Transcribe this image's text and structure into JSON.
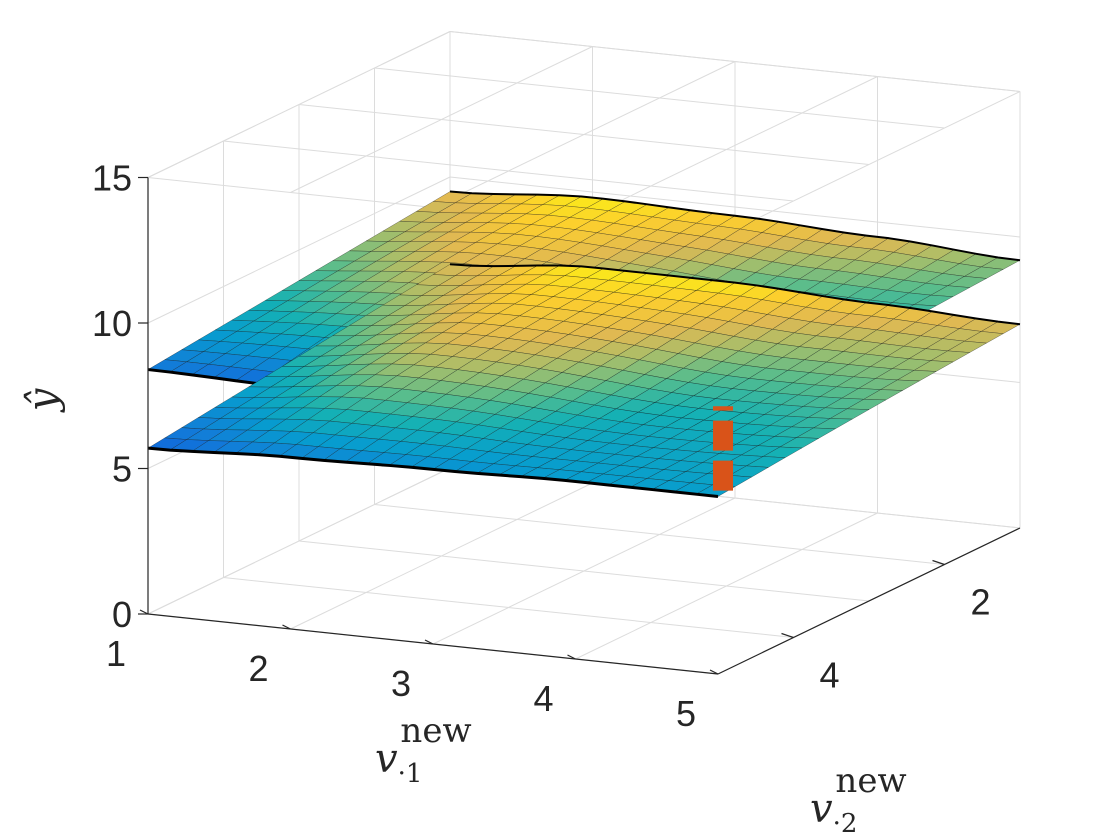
{
  "chart_data": {
    "type": "surface",
    "view": "3d",
    "xlabel": "v·1new",
    "ylabel": "v·2new",
    "zlabel": "ŷ",
    "xlabel_parts": {
      "base": "v",
      "sub": "·1",
      "sup": "new"
    },
    "ylabel_parts": {
      "base": "v",
      "sub": "·2",
      "sup": "new"
    },
    "zlabel_parts": {
      "base": "ŷ"
    },
    "xlim": [
      1,
      5
    ],
    "ylim": [
      1,
      5
    ],
    "zlim": [
      0,
      15
    ],
    "x_ticks": [
      "1",
      "2",
      "3",
      "4",
      "5"
    ],
    "y_ticks": [
      "2",
      "4"
    ],
    "z_ticks": [
      "0",
      "5",
      "10",
      "15"
    ],
    "grid": true,
    "colormap": "parula",
    "series": [
      {
        "x": [
          1,
          2,
          3,
          4,
          5
        ],
        "y_at_v2_5": [
          8.4,
          8.3,
          8.4,
          8.5,
          8.5
        ],
        "y_at_v2_1": [
          9.5,
          9.8,
          9.7,
          9.5,
          9.2
        ]
      },
      {
        "x": [
          1,
          2,
          3,
          4,
          5
        ],
        "y_at_v2_5": [
          5.7,
          5.9,
          6.0,
          6.1,
          6.1
        ],
        "y_at_v2_1": [
          7.0,
          7.4,
          7.4,
          7.2,
          7.0
        ]
      }
    ],
    "marker": {
      "x": 5,
      "y": 5,
      "z_range": [
        6.3,
        9.2
      ],
      "color": "#D95319",
      "style": "dashed"
    }
  }
}
